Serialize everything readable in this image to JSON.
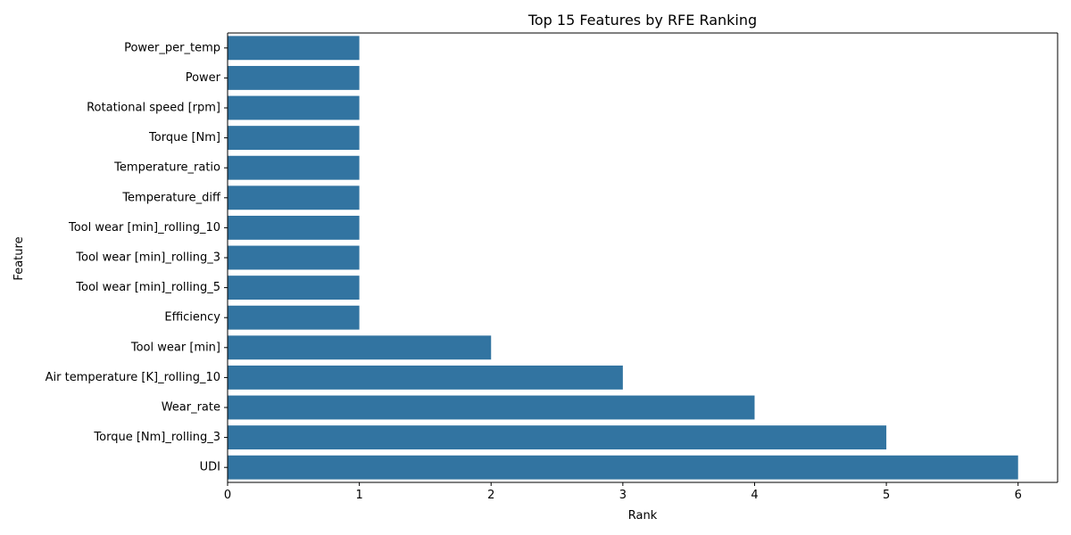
{
  "chart_data": {
    "type": "bar",
    "orientation": "horizontal",
    "title": "Top 15 Features by RFE Ranking",
    "xlabel": "Rank",
    "ylabel": "Feature",
    "xlim": [
      0,
      6.3
    ],
    "xticks": [
      0,
      1,
      2,
      3,
      4,
      5,
      6
    ],
    "bar_color": "#3274a1",
    "grid": false,
    "categories": [
      "Power_per_temp",
      "Power",
      "Rotational speed [rpm]",
      "Torque [Nm]",
      "Temperature_ratio",
      "Temperature_diff",
      "Tool wear [min]_rolling_10",
      "Tool wear [min]_rolling_3",
      "Tool wear [min]_rolling_5",
      "Efficiency",
      "Tool wear [min]",
      "Air temperature [K]_rolling_10",
      "Wear_rate",
      "Torque [Nm]_rolling_3",
      "UDI"
    ],
    "values": [
      1,
      1,
      1,
      1,
      1,
      1,
      1,
      1,
      1,
      1,
      2,
      3,
      4,
      5,
      6
    ]
  }
}
